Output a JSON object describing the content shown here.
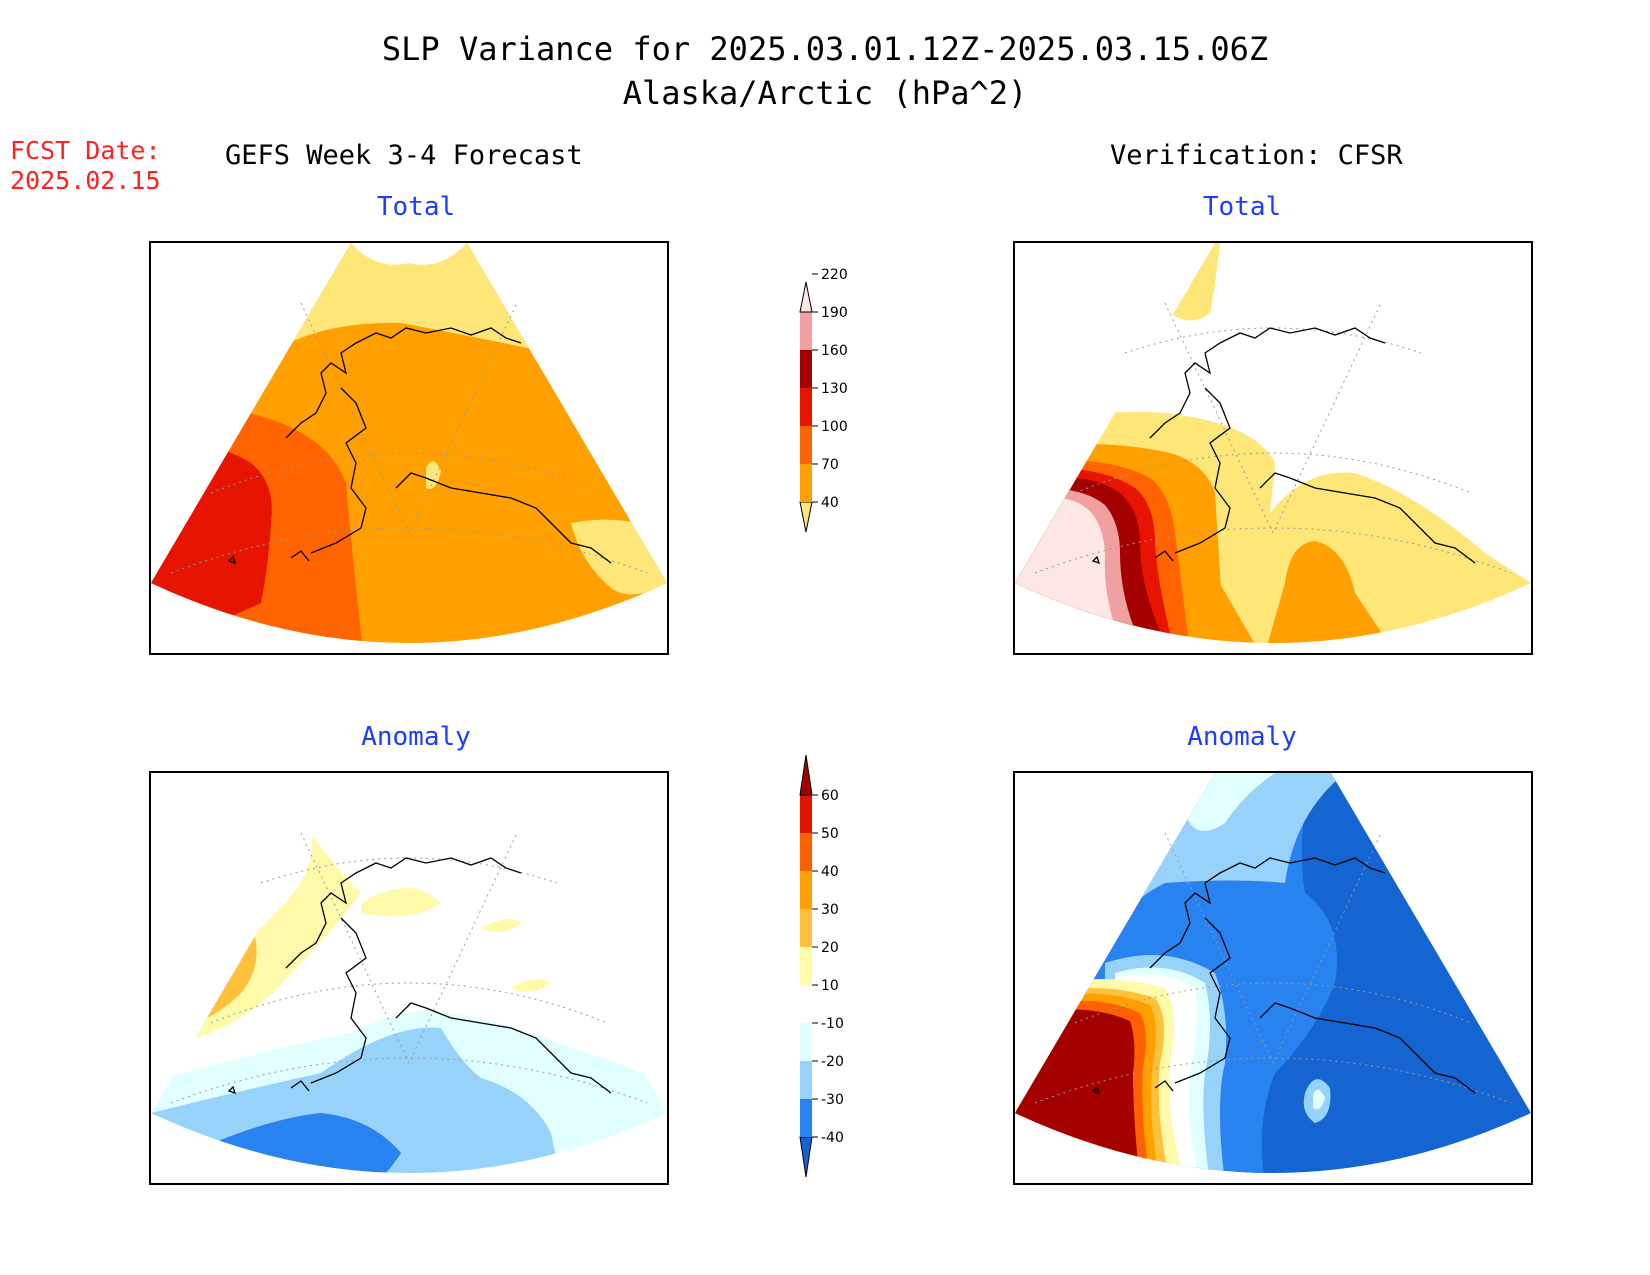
{
  "header": {
    "title_line1": "SLP Variance for 2025.03.01.12Z-2025.03.15.06Z",
    "title_line2": "Alaska/Arctic (hPa^2)",
    "fcst_label": "FCST Date:",
    "fcst_date": "2025.02.15"
  },
  "columns": {
    "left": "GEFS Week 3-4 Forecast",
    "right": "Verification: CFSR"
  },
  "panels": {
    "tl": "Total",
    "tr": "Total",
    "bl": "Anomaly",
    "br": "Anomaly"
  },
  "total_colorbar": {
    "ticks": [
      "40",
      "70",
      "100",
      "130",
      "160",
      "190",
      "220"
    ],
    "colors": [
      "#ffe679",
      "#ffa000",
      "#ff6400",
      "#e61400",
      "#a50000",
      "#f0a0a0",
      "#fde6e6"
    ]
  },
  "anomaly_colorbar": {
    "ticks": [
      "-40",
      "-30",
      "-20",
      "-10",
      "10",
      "20",
      "30",
      "40",
      "50",
      "60"
    ],
    "colors": [
      "#1464d2",
      "#2882f0",
      "#96d2fa",
      "#e1ffff",
      "#ffffff",
      "#fffaaa",
      "#ffc03c",
      "#ffa000",
      "#ff6000",
      "#e11400",
      "#a50000"
    ]
  },
  "colors": {
    "title_red": "#ff2020",
    "subtitle_blue": "#1e3cff"
  }
}
